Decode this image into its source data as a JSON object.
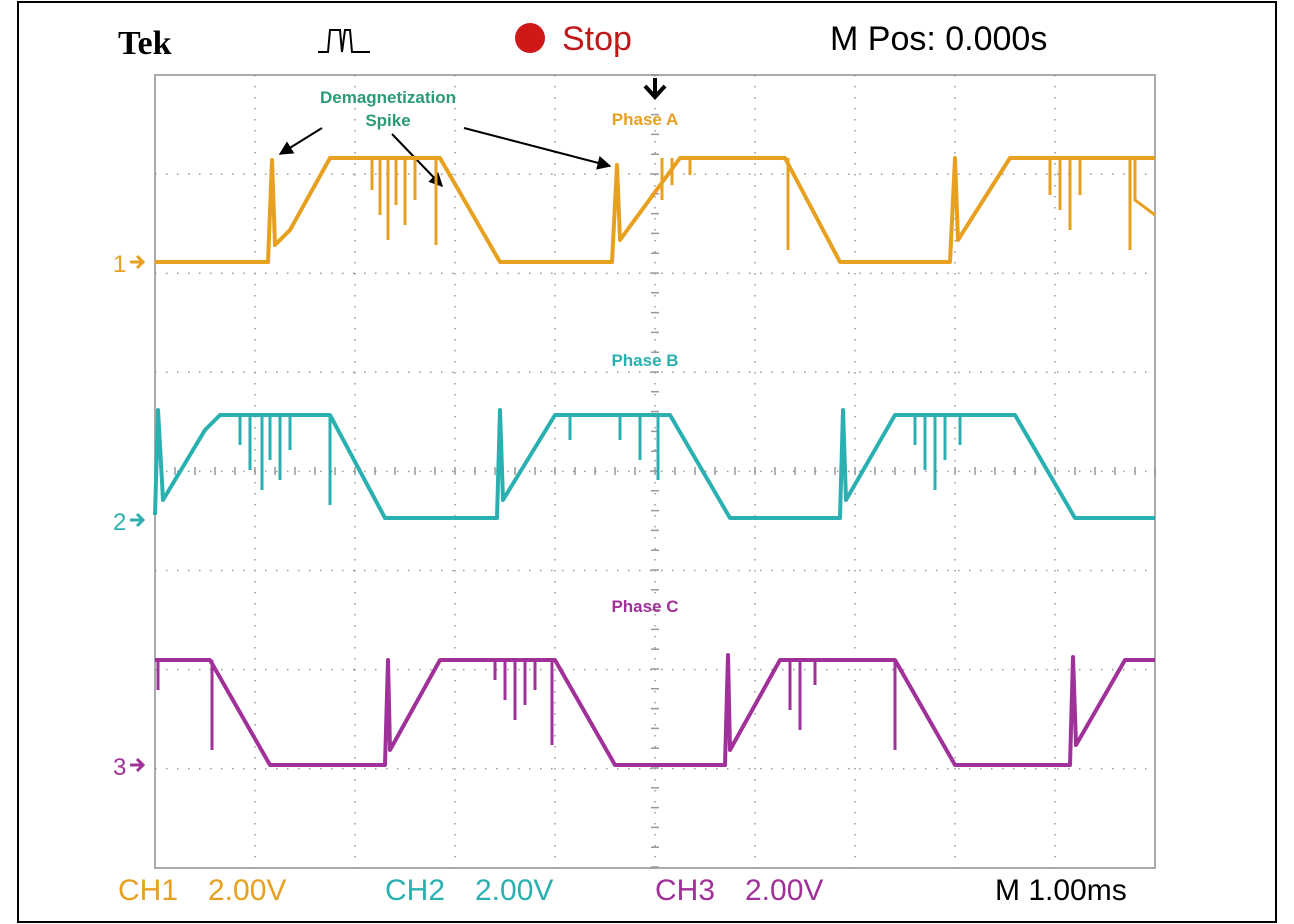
{
  "header": {
    "brand": "Tek",
    "status": "Stop",
    "position": "M Pos: 0.000s"
  },
  "annotation": {
    "lines": [
      "Demagnetization",
      "Spike"
    ]
  },
  "traces": [
    {
      "label": "Phase A",
      "marker": "1"
    },
    {
      "label": "Phase B",
      "marker": "2"
    },
    {
      "label": "Phase C",
      "marker": "3"
    }
  ],
  "footer": {
    "channels": [
      {
        "name": "CH1",
        "scale": "2.00V"
      },
      {
        "name": "CH2",
        "scale": "2.00V"
      },
      {
        "name": "CH3",
        "scale": "2.00V"
      }
    ],
    "timebase": "M 1.00ms"
  }
}
